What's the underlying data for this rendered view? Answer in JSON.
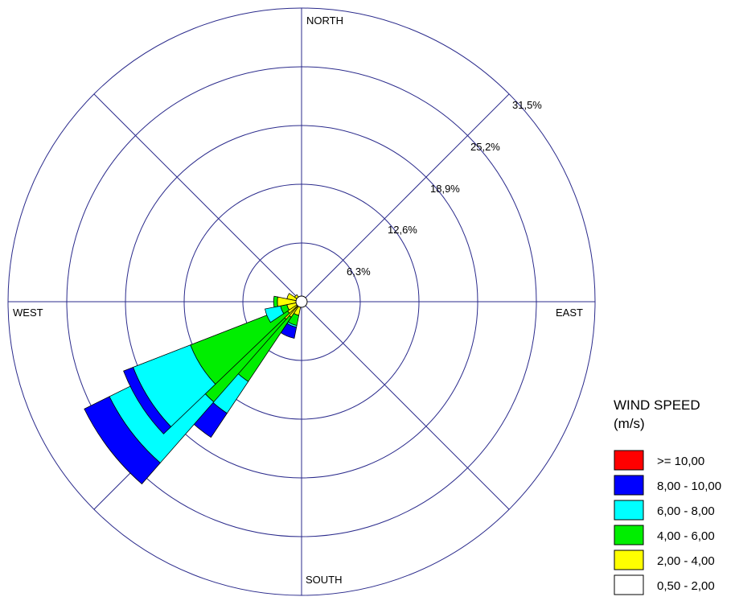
{
  "chart_data": {
    "type": "windrose",
    "title": "",
    "direction_labels": {
      "north": "NORTH",
      "east": "EAST",
      "south": "SOUTH",
      "west": "WEST"
    },
    "radial_unit": "%",
    "radial_max": 31.5,
    "ring_values": [
      6.3,
      12.6,
      18.9,
      25.2,
      31.5
    ],
    "ring_labels": [
      "6,3%",
      "12,6%",
      "18,9%",
      "25,2%",
      "31,5%"
    ],
    "calm_circle": true,
    "legend": {
      "title": "WIND SPEED",
      "unit": "(m/s)",
      "bins": [
        {
          "label": ">= 10,00",
          "color": "#ff0000"
        },
        {
          "label": "8,00 - 10,00",
          "color": "#0000ff"
        },
        {
          "label": "6,00 - 8,00",
          "color": "#00ffff"
        },
        {
          "label": "4,00 - 6,00",
          "color": "#00ee00"
        },
        {
          "label": "2,00 - 4,00",
          "color": "#ffff00"
        },
        {
          "label": "0,50 - 2,00",
          "color": "#ffffff"
        }
      ]
    },
    "sector_width_deg": 22.5,
    "speed_bins_order": [
      "0,50 - 2,00",
      "2,00 - 4,00",
      "4,00 - 6,00",
      "6,00 - 8,00",
      "8,00 - 10,00",
      ">= 10,00"
    ],
    "sectors": [
      {
        "direction_deg": 157.5,
        "cumulative": [
          0.3,
          0.5,
          0.5,
          0.5,
          0.5,
          0.5
        ]
      },
      {
        "direction_deg": 180,
        "cumulative": [
          0.3,
          0.5,
          0.5,
          0.5,
          0.5,
          0.5
        ]
      },
      {
        "direction_deg": 202.5,
        "cumulative": [
          0.3,
          1.5,
          2.6,
          2.8,
          4.0,
          4.0
        ]
      },
      {
        "direction_deg": 225,
        "cumulative": [
          0.4,
          2.0,
          10.3,
          14.4,
          17.5,
          17.5
        ]
      },
      {
        "direction_deg": 232.5,
        "cumulative": [
          0.5,
          2.5,
          14.3,
          23.0,
          26.0,
          26.0
        ]
      },
      {
        "direction_deg": 237.5,
        "cumulative": [
          0.4,
          1.8,
          12.8,
          19.4,
          20.5,
          20.5
        ]
      },
      {
        "direction_deg": 247.5,
        "cumulative": [
          0.3,
          1.6,
          2.3,
          4.0,
          4.0,
          4.0
        ]
      },
      {
        "direction_deg": 270,
        "cumulative": [
          0.3,
          2.6,
          3.0,
          3.0,
          3.0,
          3.0
        ]
      },
      {
        "direction_deg": 292.5,
        "cumulative": [
          0.3,
          1.6,
          1.6,
          1.6,
          1.6,
          1.6
        ]
      },
      {
        "direction_deg": 315,
        "cumulative": [
          0.3,
          0.9,
          0.9,
          0.9,
          0.9,
          0.9
        ]
      },
      {
        "direction_deg": 337.5,
        "cumulative": [
          0.3,
          0.4,
          0.4,
          0.4,
          0.4,
          0.4
        ]
      }
    ]
  }
}
